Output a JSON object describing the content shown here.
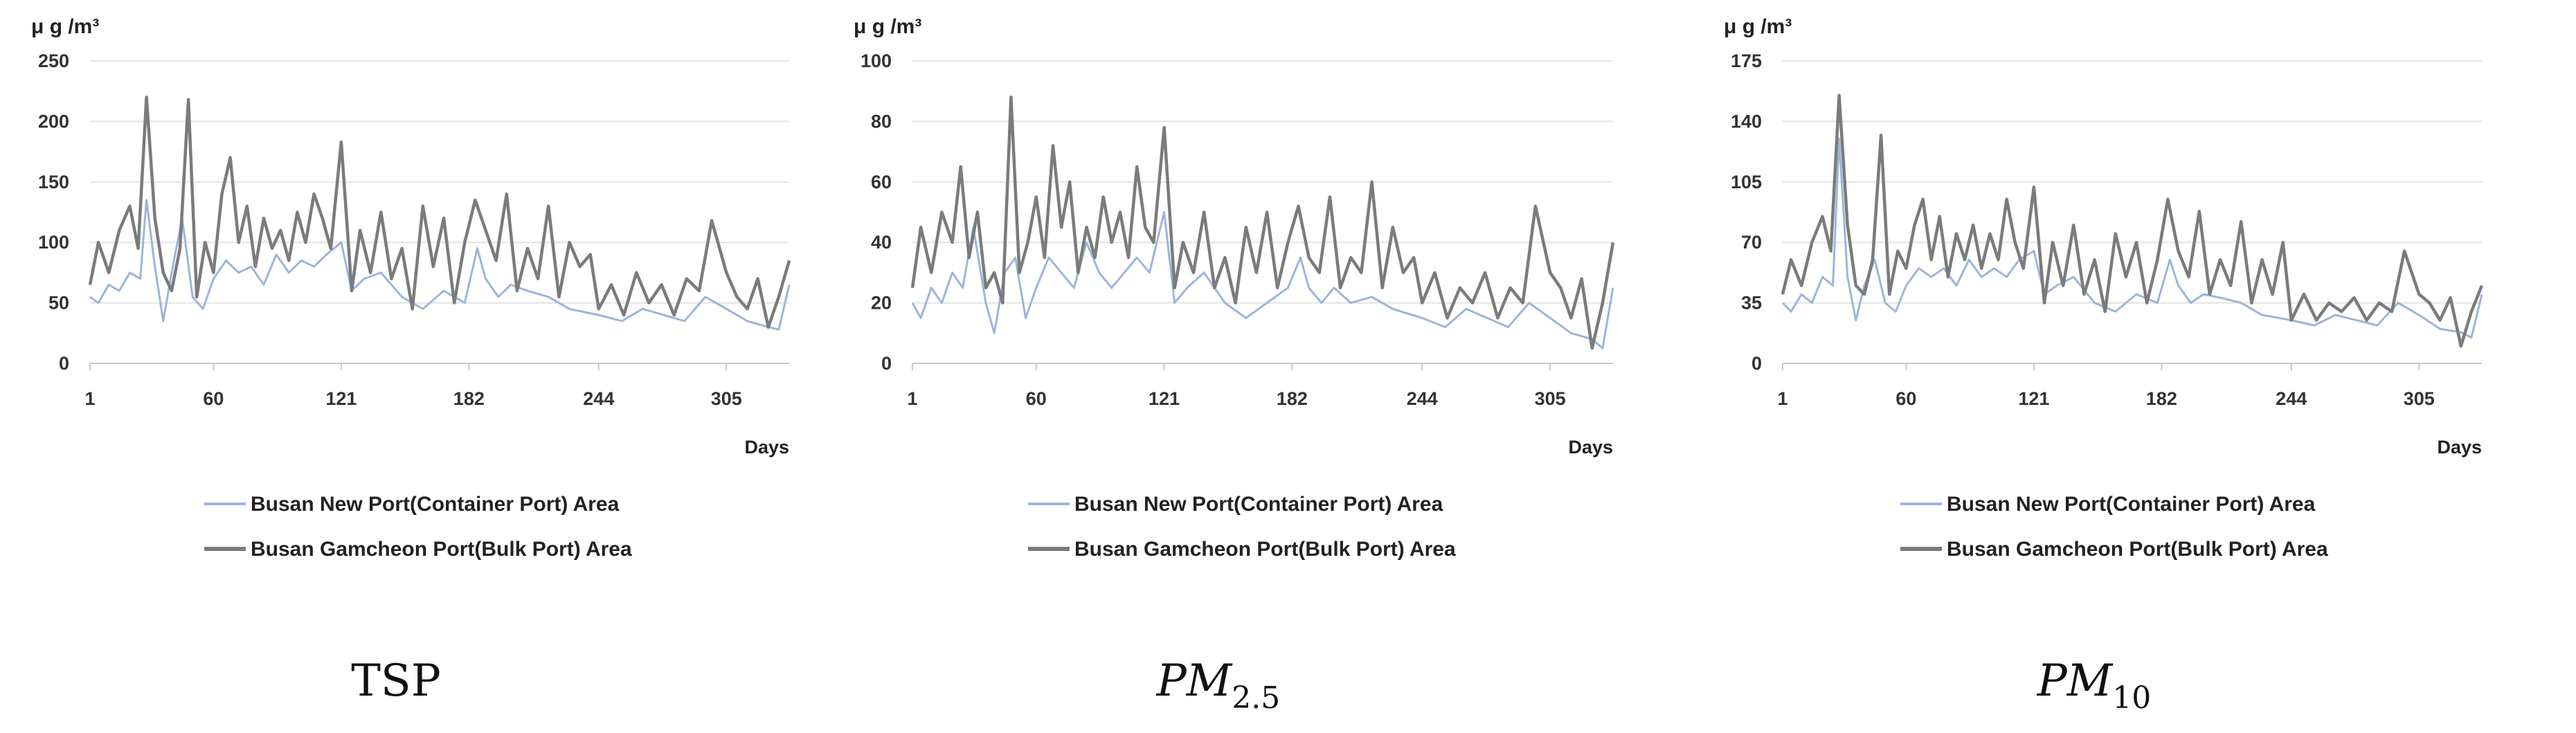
{
  "chart_data": [
    {
      "type": "line",
      "title": "",
      "panel_label": "TSP",
      "unit_label": "μ g /m³",
      "xlabel": "Days",
      "ylim": [
        0,
        250
      ],
      "y_ticks": [
        "0",
        "50",
        "100",
        "150",
        "200",
        "250"
      ],
      "x_ticks": [
        "1",
        "60",
        "121",
        "182",
        "244",
        "305"
      ],
      "x_tick_values": [
        1,
        60,
        121,
        182,
        244,
        305
      ],
      "xlim": [
        1,
        335
      ],
      "legend_position": "bottom",
      "colors": {
        "Busan New Port(Container Port) Area": "#9db5d9",
        "Busan Gamcheon Port(Bulk Port) Area": "#7b7b7b"
      },
      "series": [
        {
          "name": "Busan New Port(Container Port) Area",
          "x": [
            1,
            5,
            10,
            15,
            20,
            25,
            28,
            32,
            36,
            40,
            45,
            50,
            55,
            60,
            66,
            72,
            78,
            84,
            90,
            96,
            102,
            108,
            114,
            121,
            126,
            132,
            140,
            150,
            160,
            170,
            180,
            186,
            190,
            196,
            202,
            210,
            220,
            230,
            244,
            255,
            265,
            275,
            285,
            295,
            305,
            315,
            325,
            330,
            335
          ],
          "values": [
            55,
            50,
            65,
            60,
            75,
            70,
            135,
            80,
            35,
            75,
            120,
            55,
            45,
            70,
            85,
            75,
            80,
            65,
            90,
            75,
            85,
            80,
            90,
            100,
            60,
            70,
            75,
            55,
            45,
            60,
            50,
            95,
            70,
            55,
            65,
            60,
            55,
            45,
            40,
            35,
            45,
            40,
            35,
            55,
            45,
            35,
            30,
            28,
            65
          ]
        },
        {
          "name": "Busan Gamcheon Port(Bulk Port) Area",
          "x": [
            1,
            5,
            10,
            15,
            20,
            24,
            28,
            32,
            36,
            40,
            44,
            48,
            52,
            56,
            60,
            64,
            68,
            72,
            76,
            80,
            84,
            88,
            92,
            96,
            100,
            104,
            108,
            112,
            116,
            121,
            126,
            130,
            135,
            140,
            145,
            150,
            155,
            160,
            165,
            170,
            175,
            180,
            185,
            190,
            195,
            200,
            205,
            210,
            215,
            220,
            225,
            230,
            235,
            240,
            244,
            250,
            256,
            262,
            268,
            274,
            280,
            286,
            292,
            298,
            305,
            310,
            315,
            320,
            325,
            330,
            335
          ],
          "values": [
            65,
            100,
            75,
            110,
            130,
            95,
            220,
            120,
            75,
            60,
            95,
            218,
            55,
            100,
            75,
            140,
            170,
            100,
            130,
            80,
            120,
            95,
            110,
            85,
            125,
            100,
            140,
            120,
            95,
            183,
            60,
            110,
            75,
            125,
            70,
            95,
            45,
            130,
            80,
            120,
            50,
            100,
            135,
            110,
            85,
            140,
            60,
            95,
            70,
            130,
            55,
            100,
            80,
            90,
            45,
            65,
            40,
            75,
            50,
            65,
            40,
            70,
            60,
            118,
            75,
            55,
            45,
            70,
            30,
            55,
            85
          ]
        }
      ]
    },
    {
      "type": "line",
      "title": "",
      "panel_label_main": "PM",
      "panel_label_sub": "2.5",
      "unit_label": "μ g /m³",
      "xlabel": "Days",
      "ylim": [
        0,
        100
      ],
      "y_ticks": [
        "0",
        "20",
        "40",
        "60",
        "80",
        "100"
      ],
      "x_ticks": [
        "1",
        "60",
        "121",
        "182",
        "244",
        "305"
      ],
      "x_tick_values": [
        1,
        60,
        121,
        182,
        244,
        305
      ],
      "xlim": [
        1,
        335
      ],
      "legend_position": "bottom",
      "colors": {
        "Busan New Port(Container Port) Area": "#9db5d9",
        "Busan Gamcheon Port(Bulk Port) Area": "#7b7b7b"
      },
      "series": [
        {
          "name": "Busan New Port(Container Port) Area",
          "x": [
            1,
            5,
            10,
            15,
            20,
            25,
            30,
            36,
            40,
            45,
            50,
            55,
            60,
            66,
            72,
            78,
            84,
            90,
            96,
            102,
            108,
            114,
            121,
            126,
            132,
            140,
            150,
            160,
            170,
            180,
            186,
            190,
            196,
            202,
            210,
            220,
            230,
            244,
            255,
            265,
            275,
            285,
            295,
            305,
            315,
            325,
            330,
            335
          ],
          "values": [
            20,
            15,
            25,
            20,
            30,
            25,
            45,
            20,
            10,
            30,
            35,
            15,
            25,
            35,
            30,
            25,
            40,
            30,
            25,
            30,
            35,
            30,
            50,
            20,
            25,
            30,
            20,
            15,
            20,
            25,
            35,
            25,
            20,
            25,
            20,
            22,
            18,
            15,
            12,
            18,
            15,
            12,
            20,
            15,
            10,
            8,
            5,
            25
          ]
        },
        {
          "name": "Busan Gamcheon Port(Bulk Port) Area",
          "x": [
            1,
            5,
            10,
            15,
            20,
            24,
            28,
            32,
            36,
            40,
            44,
            48,
            52,
            56,
            60,
            64,
            68,
            72,
            76,
            80,
            84,
            88,
            92,
            96,
            100,
            104,
            108,
            112,
            116,
            121,
            126,
            130,
            135,
            140,
            145,
            150,
            155,
            160,
            165,
            170,
            175,
            180,
            185,
            190,
            195,
            200,
            205,
            210,
            215,
            220,
            225,
            230,
            235,
            240,
            244,
            250,
            256,
            262,
            268,
            274,
            280,
            286,
            292,
            298,
            305,
            310,
            315,
            320,
            325,
            330,
            335
          ],
          "values": [
            25,
            45,
            30,
            50,
            40,
            65,
            35,
            50,
            25,
            30,
            20,
            88,
            30,
            40,
            55,
            35,
            72,
            45,
            60,
            30,
            45,
            35,
            55,
            40,
            50,
            35,
            65,
            45,
            40,
            78,
            25,
            40,
            30,
            50,
            25,
            35,
            20,
            45,
            30,
            50,
            25,
            40,
            52,
            35,
            30,
            55,
            25,
            35,
            30,
            60,
            25,
            45,
            30,
            35,
            20,
            30,
            15,
            25,
            20,
            30,
            15,
            25,
            20,
            52,
            30,
            25,
            15,
            28,
            5,
            20,
            40
          ]
        }
      ]
    },
    {
      "type": "line",
      "title": "",
      "panel_label_main": "PM",
      "panel_label_sub": "10",
      "unit_label": "μ g /m³",
      "xlabel": "Days",
      "ylim": [
        0,
        175
      ],
      "y_ticks": [
        "0",
        "35",
        "70",
        "105",
        "140",
        "175"
      ],
      "x_ticks": [
        "1",
        "60",
        "121",
        "182",
        "244",
        "305"
      ],
      "x_tick_values": [
        1,
        60,
        121,
        182,
        244,
        305
      ],
      "xlim": [
        1,
        335
      ],
      "legend_position": "bottom",
      "colors": {
        "Busan New Port(Container Port) Area": "#9db5d9",
        "Busan Gamcheon Port(Bulk Port) Area": "#7b7b7b"
      },
      "series": [
        {
          "name": "Busan New Port(Container Port) Area",
          "x": [
            1,
            5,
            10,
            15,
            20,
            25,
            28,
            32,
            36,
            40,
            45,
            50,
            55,
            60,
            66,
            72,
            78,
            84,
            90,
            96,
            102,
            108,
            114,
            121,
            126,
            132,
            140,
            150,
            160,
            170,
            180,
            186,
            190,
            196,
            202,
            210,
            220,
            230,
            244,
            255,
            265,
            275,
            285,
            295,
            305,
            315,
            325,
            330,
            335
          ],
          "values": [
            35,
            30,
            40,
            35,
            50,
            45,
            130,
            50,
            25,
            45,
            60,
            35,
            30,
            45,
            55,
            50,
            55,
            45,
            60,
            50,
            55,
            50,
            60,
            65,
            40,
            45,
            50,
            35,
            30,
            40,
            35,
            60,
            45,
            35,
            40,
            38,
            35,
            28,
            25,
            22,
            28,
            25,
            22,
            35,
            28,
            20,
            18,
            15,
            40
          ]
        },
        {
          "name": "Busan Gamcheon Port(Bulk Port) Area",
          "x": [
            1,
            5,
            10,
            15,
            20,
            24,
            28,
            32,
            36,
            40,
            44,
            48,
            52,
            56,
            60,
            64,
            68,
            72,
            76,
            80,
            84,
            88,
            92,
            96,
            100,
            104,
            108,
            112,
            116,
            121,
            126,
            130,
            135,
            140,
            145,
            150,
            155,
            160,
            165,
            170,
            175,
            180,
            185,
            190,
            195,
            200,
            205,
            210,
            215,
            220,
            225,
            230,
            235,
            240,
            244,
            250,
            256,
            262,
            268,
            274,
            280,
            286,
            292,
            298,
            305,
            310,
            315,
            320,
            325,
            330,
            335
          ],
          "values": [
            40,
            60,
            45,
            70,
            85,
            65,
            155,
            80,
            45,
            40,
            60,
            132,
            40,
            65,
            55,
            80,
            95,
            60,
            85,
            50,
            75,
            60,
            80,
            55,
            75,
            60,
            95,
            70,
            55,
            102,
            35,
            70,
            45,
            80,
            40,
            60,
            30,
            75,
            50,
            70,
            35,
            60,
            95,
            65,
            50,
            88,
            40,
            60,
            45,
            82,
            35,
            60,
            40,
            70,
            25,
            40,
            25,
            35,
            30,
            38,
            25,
            35,
            30,
            65,
            40,
            35,
            25,
            38,
            10,
            30,
            45
          ]
        }
      ]
    }
  ]
}
